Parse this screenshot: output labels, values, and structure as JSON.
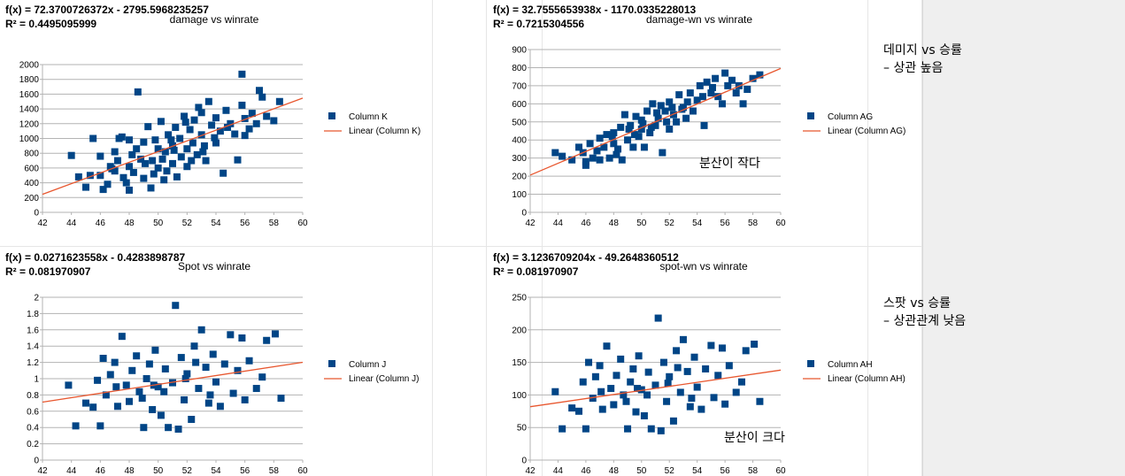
{
  "chart_data": [
    {
      "type": "scatter",
      "title": "damage vs winrate",
      "equation": "f(x) = 72.3700726372x - 2795.5968235257",
      "r2": "R² = 0.4495095999",
      "series_name": "Column K",
      "trend_name": "Linear (Column K)",
      "xlim": [
        42,
        60
      ],
      "xticks": [
        42,
        44,
        46,
        48,
        50,
        52,
        54,
        56,
        58,
        60
      ],
      "ylim": [
        0,
        2000
      ],
      "yticks": [
        0,
        200,
        400,
        600,
        800,
        1000,
        1200,
        1400,
        1600,
        1800,
        2000
      ],
      "trend": {
        "slope": 72.3700726372,
        "intercept": -2795.5968235257
      },
      "grid": true,
      "legend": "right",
      "points": [
        [
          44,
          770
        ],
        [
          44.5,
          480
        ],
        [
          45,
          340
        ],
        [
          45.3,
          500
        ],
        [
          45.5,
          1000
        ],
        [
          46,
          760
        ],
        [
          46,
          500
        ],
        [
          46.2,
          310
        ],
        [
          46.5,
          380
        ],
        [
          46.7,
          620
        ],
        [
          47,
          820
        ],
        [
          47.2,
          700
        ],
        [
          47.3,
          1000
        ],
        [
          47.5,
          1020
        ],
        [
          47.8,
          400
        ],
        [
          48,
          980
        ],
        [
          48,
          620
        ],
        [
          48,
          300
        ],
        [
          48.3,
          540
        ],
        [
          48.5,
          860
        ],
        [
          48.6,
          1630
        ],
        [
          48.8,
          720
        ],
        [
          49,
          950
        ],
        [
          49,
          460
        ],
        [
          49.3,
          1160
        ],
        [
          49.5,
          330
        ],
        [
          49.6,
          700
        ],
        [
          49.8,
          980
        ],
        [
          50,
          860
        ],
        [
          50,
          600
        ],
        [
          50.2,
          1230
        ],
        [
          50.4,
          440
        ],
        [
          50.5,
          820
        ],
        [
          50.7,
          1050
        ],
        [
          51,
          660
        ],
        [
          51,
          900
        ],
        [
          51.2,
          1150
        ],
        [
          51.3,
          480
        ],
        [
          51.5,
          1000
        ],
        [
          51.6,
          750
        ],
        [
          51.8,
          1300
        ],
        [
          52,
          860
        ],
        [
          52,
          620
        ],
        [
          52.2,
          1120
        ],
        [
          52.4,
          940
        ],
        [
          52.5,
          1250
        ],
        [
          52.7,
          780
        ],
        [
          53,
          1050
        ],
        [
          53,
          1350
        ],
        [
          53.2,
          900
        ],
        [
          53.3,
          700
        ],
        [
          53.5,
          1500
        ],
        [
          53.7,
          1180
        ],
        [
          54,
          1280
        ],
        [
          54,
          940
        ],
        [
          54.3,
          1100
        ],
        [
          54.5,
          530
        ],
        [
          54.7,
          1380
        ],
        [
          55,
          1200
        ],
        [
          55.3,
          1060
        ],
        [
          55.5,
          710
        ],
        [
          55.8,
          1450
        ],
        [
          55.8,
          1870
        ],
        [
          56,
          1270
        ],
        [
          56,
          1040
        ],
        [
          56.3,
          1130
        ],
        [
          56.5,
          1340
        ],
        [
          56.8,
          1200
        ],
        [
          57,
          1650
        ],
        [
          57.2,
          1560
        ],
        [
          57.5,
          1300
        ],
        [
          58,
          1240
        ],
        [
          58.4,
          1500
        ],
        [
          47,
          560
        ],
        [
          48.2,
          780
        ],
        [
          49.1,
          660
        ],
        [
          50.3,
          720
        ],
        [
          51.1,
          840
        ],
        [
          52.3,
          700
        ],
        [
          53.1,
          820
        ],
        [
          49.7,
          520
        ],
        [
          50.9,
          980
        ],
        [
          52.8,
          1420
        ],
        [
          54.8,
          1150
        ],
        [
          46.8,
          590
        ],
        [
          47.6,
          470
        ],
        [
          50.6,
          560
        ],
        [
          51.9,
          1220
        ],
        [
          53.9,
          1010
        ]
      ]
    },
    {
      "type": "scatter",
      "title": "damage-wn vs winrate",
      "equation": "f(x) = 32.7555653938x - 1170.0335228013",
      "r2": "R² = 0.7215304556",
      "series_name": "Column AG",
      "trend_name": "Linear (Column AG)",
      "xlim": [
        42,
        60
      ],
      "xticks": [
        42,
        44,
        46,
        48,
        50,
        52,
        54,
        56,
        58,
        60
      ],
      "ylim": [
        0,
        900
      ],
      "yticks": [
        0,
        100,
        200,
        300,
        400,
        500,
        600,
        700,
        800,
        900
      ],
      "trend": {
        "slope": 32.7555653938,
        "intercept": -1170.0335228013
      },
      "grid": true,
      "legend": "right",
      "points": [
        [
          43.8,
          330
        ],
        [
          44.3,
          310
        ],
        [
          45,
          290
        ],
        [
          45.5,
          360
        ],
        [
          45.8,
          330
        ],
        [
          46,
          280
        ],
        [
          46,
          260
        ],
        [
          46.3,
          380
        ],
        [
          46.5,
          300
        ],
        [
          46.8,
          340
        ],
        [
          47,
          410
        ],
        [
          47,
          290
        ],
        [
          47.3,
          360
        ],
        [
          47.5,
          430
        ],
        [
          47.7,
          300
        ],
        [
          48,
          440
        ],
        [
          48,
          380
        ],
        [
          48.2,
          320
        ],
        [
          48.5,
          470
        ],
        [
          48.6,
          290
        ],
        [
          48.8,
          540
        ],
        [
          49,
          400
        ],
        [
          49.2,
          480
        ],
        [
          49.4,
          360
        ],
        [
          49.6,
          530
        ],
        [
          49.8,
          420
        ],
        [
          50,
          510
        ],
        [
          50,
          460
        ],
        [
          50.2,
          360
        ],
        [
          50.4,
          560
        ],
        [
          50.6,
          440
        ],
        [
          50.8,
          600
        ],
        [
          51,
          480
        ],
        [
          51.2,
          520
        ],
        [
          51.4,
          590
        ],
        [
          51.5,
          330
        ],
        [
          51.7,
          560
        ],
        [
          52,
          460
        ],
        [
          52,
          610
        ],
        [
          52.3,
          540
        ],
        [
          52.5,
          500
        ],
        [
          52.7,
          650
        ],
        [
          53,
          580
        ],
        [
          53.2,
          520
        ],
        [
          53.5,
          660
        ],
        [
          53.7,
          560
        ],
        [
          54,
          620
        ],
        [
          54.2,
          700
        ],
        [
          54.5,
          480
        ],
        [
          54.7,
          720
        ],
        [
          55,
          660
        ],
        [
          55.3,
          740
        ],
        [
          55.5,
          640
        ],
        [
          55.8,
          600
        ],
        [
          56,
          770
        ],
        [
          56.2,
          700
        ],
        [
          56.5,
          730
        ],
        [
          56.8,
          660
        ],
        [
          57,
          700
        ],
        [
          57.3,
          600
        ],
        [
          57.6,
          680
        ],
        [
          58,
          740
        ],
        [
          58.5,
          760
        ],
        [
          47.9,
          420
        ],
        [
          49.1,
          460
        ],
        [
          50.1,
          490
        ],
        [
          51.1,
          550
        ],
        [
          52.2,
          580
        ],
        [
          53.3,
          610
        ],
        [
          54.4,
          640
        ],
        [
          55.1,
          690
        ],
        [
          48.3,
          350
        ],
        [
          49.5,
          430
        ],
        [
          50.7,
          470
        ],
        [
          51.8,
          500
        ],
        [
          52.9,
          570
        ]
      ]
    },
    {
      "type": "scatter",
      "title": "Spot vs winrate",
      "equation": "f(x) = 0.0271623558x - 0.4283898787",
      "r2": "R² = 0.081970907",
      "series_name": "Column J",
      "trend_name": "Linear (Column J)",
      "xlim": [
        42,
        60
      ],
      "xticks": [
        42,
        44,
        46,
        48,
        50,
        52,
        54,
        56,
        58,
        60
      ],
      "ylim": [
        0,
        2
      ],
      "yticks": [
        0,
        0.2,
        0.4,
        0.6,
        0.8,
        1,
        1.2,
        1.4,
        1.6,
        1.8,
        2
      ],
      "trend": {
        "slope": 0.0271623558,
        "intercept": -0.4283898787
      },
      "grid": true,
      "legend": "right",
      "points": [
        [
          43.8,
          0.92
        ],
        [
          44.3,
          0.42
        ],
        [
          45,
          0.7
        ],
        [
          45.5,
          0.65
        ],
        [
          45.8,
          0.98
        ],
        [
          46,
          0.42
        ],
        [
          46.2,
          1.25
        ],
        [
          46.4,
          0.8
        ],
        [
          46.7,
          1.05
        ],
        [
          47,
          1.2
        ],
        [
          47.2,
          0.66
        ],
        [
          47.5,
          1.52
        ],
        [
          47.8,
          0.92
        ],
        [
          48,
          0.72
        ],
        [
          48.2,
          1.1
        ],
        [
          48.5,
          1.28
        ],
        [
          48.7,
          0.84
        ],
        [
          49,
          0.4
        ],
        [
          49.2,
          1.0
        ],
        [
          49.4,
          1.18
        ],
        [
          49.6,
          0.62
        ],
        [
          49.8,
          1.35
        ],
        [
          50,
          0.9
        ],
        [
          50.2,
          0.55
        ],
        [
          50.5,
          1.12
        ],
        [
          50.7,
          0.4
        ],
        [
          51,
          0.95
        ],
        [
          51.2,
          1.9
        ],
        [
          51.4,
          0.38
        ],
        [
          51.6,
          1.26
        ],
        [
          51.8,
          0.74
        ],
        [
          52,
          1.06
        ],
        [
          52.3,
          0.5
        ],
        [
          52.5,
          1.4
        ],
        [
          52.8,
          0.88
        ],
        [
          53,
          1.6
        ],
        [
          53.3,
          1.14
        ],
        [
          53.5,
          0.7
        ],
        [
          53.8,
          1.3
        ],
        [
          54,
          0.96
        ],
        [
          54.3,
          0.66
        ],
        [
          54.6,
          1.18
        ],
        [
          55,
          1.54
        ],
        [
          55.2,
          0.82
        ],
        [
          55.5,
          1.1
        ],
        [
          55.8,
          1.5
        ],
        [
          56,
          0.74
        ],
        [
          56.3,
          1.22
        ],
        [
          56.8,
          0.88
        ],
        [
          57.2,
          1.02
        ],
        [
          57.5,
          1.47
        ],
        [
          58.1,
          1.55
        ],
        [
          58.5,
          0.76
        ],
        [
          47.1,
          0.9
        ],
        [
          48.9,
          0.76
        ],
        [
          50.4,
          0.84
        ],
        [
          51.9,
          1.0
        ],
        [
          53.6,
          0.8
        ],
        [
          49.7,
          0.92
        ],
        [
          52.6,
          1.2
        ]
      ]
    },
    {
      "type": "scatter",
      "title": "spot-wn vs winrate",
      "equation": "f(x) = 3.1236709204x - 49.2648360512",
      "r2": "R² = 0.081970907",
      "series_name": "Column AH",
      "trend_name": "Linear (Column AH)",
      "xlim": [
        42,
        60
      ],
      "xticks": [
        42,
        44,
        46,
        48,
        50,
        52,
        54,
        56,
        58,
        60
      ],
      "ylim": [
        0,
        250
      ],
      "yticks": [
        0,
        50,
        100,
        150,
        200,
        250
      ],
      "trend": {
        "slope": 3.1236709204,
        "intercept": -49.2648360512
      },
      "grid": true,
      "legend": "right",
      "points": [
        [
          43.8,
          105
        ],
        [
          44.3,
          48
        ],
        [
          45,
          80
        ],
        [
          45.5,
          75
        ],
        [
          45.8,
          120
        ],
        [
          46,
          48
        ],
        [
          46.2,
          150
        ],
        [
          46.5,
          95
        ],
        [
          46.7,
          128
        ],
        [
          47,
          145
        ],
        [
          47.2,
          78
        ],
        [
          47.5,
          175
        ],
        [
          47.8,
          110
        ],
        [
          48,
          85
        ],
        [
          48.2,
          130
        ],
        [
          48.5,
          155
        ],
        [
          48.7,
          100
        ],
        [
          49,
          48
        ],
        [
          49.2,
          120
        ],
        [
          49.4,
          140
        ],
        [
          49.6,
          74
        ],
        [
          49.8,
          160
        ],
        [
          50,
          108
        ],
        [
          50.2,
          68
        ],
        [
          50.5,
          135
        ],
        [
          50.7,
          48
        ],
        [
          51,
          115
        ],
        [
          51.2,
          218
        ],
        [
          51.4,
          45
        ],
        [
          51.6,
          150
        ],
        [
          51.8,
          90
        ],
        [
          52,
          128
        ],
        [
          52.3,
          60
        ],
        [
          52.5,
          168
        ],
        [
          52.8,
          104
        ],
        [
          53,
          185
        ],
        [
          53.3,
          136
        ],
        [
          53.5,
          82
        ],
        [
          53.8,
          158
        ],
        [
          54,
          112
        ],
        [
          54.3,
          78
        ],
        [
          54.6,
          140
        ],
        [
          55,
          176
        ],
        [
          55.2,
          96
        ],
        [
          55.5,
          130
        ],
        [
          55.8,
          172
        ],
        [
          56,
          86
        ],
        [
          56.3,
          145
        ],
        [
          56.8,
          104
        ],
        [
          57.2,
          120
        ],
        [
          57.5,
          168
        ],
        [
          58.1,
          178
        ],
        [
          58.5,
          90
        ],
        [
          47.1,
          105
        ],
        [
          48.9,
          90
        ],
        [
          50.4,
          100
        ],
        [
          51.9,
          118
        ],
        [
          53.6,
          95
        ],
        [
          49.7,
          110
        ],
        [
          52.6,
          142
        ]
      ]
    }
  ],
  "annotations": {
    "damage_note_1": "데미지 vs 승률",
    "damage_note_2": "– 상관 높음",
    "variance_small": "분산이 작다",
    "spot_note_1": "스팟 vs 승률",
    "spot_note_2": "– 상관관계 낮음",
    "variance_large": "분산이 크다"
  },
  "colors": {
    "marker": "#004586",
    "trend": "#e8572f",
    "grid": "#b3b3b3"
  }
}
